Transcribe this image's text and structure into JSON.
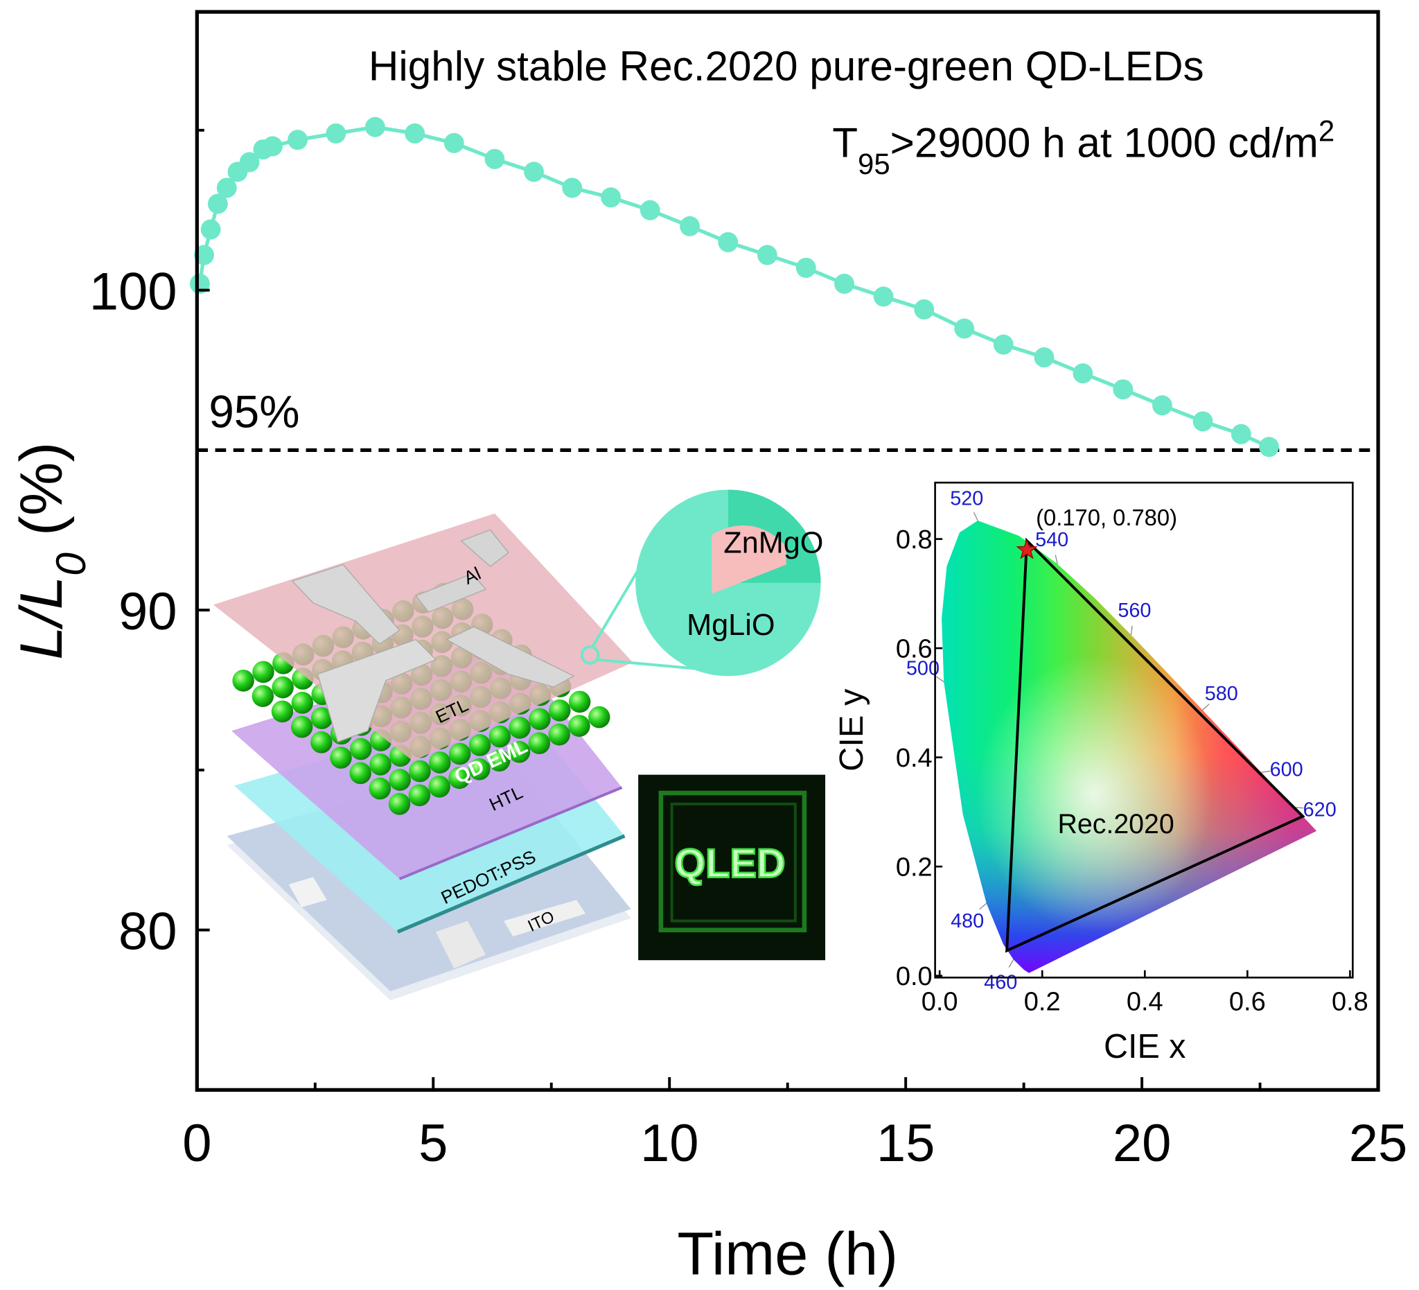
{
  "chart_data": [
    {
      "type": "line",
      "title": "Highly stable Rec.2020 pure-green QD-LEDs",
      "subtitle": [
        "T",
        "95",
        ">29000 h at 1000 cd/m",
        "2"
      ],
      "x_label": "Time (h)",
      "y_label": [
        "L/L",
        "0",
        " (%)"
      ],
      "color": "#6ee8c8",
      "x": [
        0.06,
        0.15,
        0.29,
        0.44,
        0.63,
        0.86,
        1.11,
        1.4,
        1.6,
        2.13,
        2.94,
        3.77,
        4.61,
        5.44,
        6.3,
        7.13,
        7.94,
        8.76,
        9.59,
        10.43,
        11.24,
        12.07,
        12.89,
        13.7,
        14.53,
        15.39,
        16.24,
        17.07,
        17.93,
        18.75,
        19.6,
        20.43,
        21.29,
        22.1,
        22.69
      ],
      "values": [
        100.2,
        101.1,
        101.9,
        102.7,
        103.2,
        103.7,
        104.0,
        104.4,
        104.5,
        104.7,
        104.9,
        105.1,
        104.9,
        104.6,
        104.1,
        103.7,
        103.2,
        102.9,
        102.5,
        102.0,
        101.5,
        101.1,
        100.7,
        100.2,
        99.8,
        99.4,
        98.8,
        98.3,
        97.9,
        97.4,
        96.9,
        96.4,
        95.9,
        95.5,
        95.1
      ],
      "xlim": [
        0,
        25
      ],
      "xticks": [
        0,
        5,
        10,
        15,
        20,
        25
      ],
      "x_minor_ticks": [
        2.5,
        7.5,
        12.5,
        17.5,
        22.5
      ],
      "ylim": [
        75,
        108.7
      ],
      "yticks": [
        80,
        90,
        100
      ],
      "y_minor_ticks": [
        85,
        95,
        105
      ],
      "reference_line": {
        "value": 95,
        "label": "95%"
      }
    },
    {
      "type": "cie",
      "x_label": "CIE x",
      "y_label": "CIE y",
      "xlim": [
        0,
        0.8
      ],
      "xticks": [
        {
          "value": 0,
          "label": "0.0"
        },
        0.2,
        0.4,
        0.6,
        0.8
      ],
      "ylim": [
        0,
        0.9
      ],
      "yticks": [
        {
          "value": 0,
          "label": "0.0"
        },
        0.2,
        0.4,
        0.6,
        0.8
      ],
      "spectral_locus": {
        "x": [
          0.1741,
          0.1644,
          0.144,
          0.1241,
          0.0913,
          0.0454,
          0.0082,
          0.0039,
          0.0139,
          0.0389,
          0.0743,
          0.1547,
          0.2296,
          0.3016,
          0.3731,
          0.4441,
          0.5125,
          0.5752,
          0.627,
          0.6915,
          0.719,
          0.7347
        ],
        "y": [
          0.005,
          0.0109,
          0.0297,
          0.0578,
          0.1327,
          0.295,
          0.5384,
          0.6548,
          0.7502,
          0.812,
          0.8338,
          0.8059,
          0.7543,
          0.6923,
          0.6245,
          0.5547,
          0.4866,
          0.4242,
          0.3725,
          0.3083,
          0.2809,
          0.2653
        ],
        "labels": [
          null,
          null,
          "460",
          null,
          "480",
          null,
          "500",
          null,
          null,
          null,
          "520",
          null,
          "540",
          null,
          "560",
          null,
          "580",
          null,
          "600",
          "620",
          null,
          null
        ]
      },
      "gamut": {
        "label": "Rec.2020",
        "x": [
          0.708,
          0.17,
          0.131
        ],
        "y": [
          0.292,
          0.797,
          0.046
        ]
      },
      "point": {
        "x": 0.17,
        "y": 0.78,
        "label": "(0.170, 0.780)",
        "color": "#e02020"
      }
    }
  ],
  "schematic": {
    "layers": [
      "Al",
      "ETL",
      "QD EML",
      "HTL",
      "PEDOT:PSS",
      "ITO"
    ],
    "shell": [
      "ZnMgO",
      "MgLiO"
    ],
    "photo": "QLED"
  }
}
